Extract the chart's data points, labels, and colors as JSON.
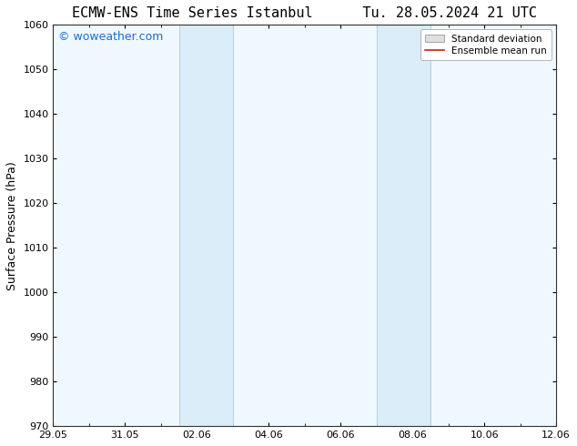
{
  "title_left": "ECMW-ENS Time Series Istanbul",
  "title_right": "Tu. 28.05.2024 21 UTC",
  "ylabel": "Surface Pressure (hPa)",
  "ylim": [
    970,
    1060
  ],
  "yticks": [
    970,
    980,
    990,
    1000,
    1010,
    1020,
    1030,
    1040,
    1050,
    1060
  ],
  "x_start_days": 0,
  "x_end_days": 14,
  "xtick_labels": [
    "29.05",
    "31.05",
    "02.06",
    "04.06",
    "06.06",
    "08.06",
    "10.06",
    "12.06"
  ],
  "xtick_positions": [
    0,
    2,
    4,
    6,
    8,
    10,
    12,
    14
  ],
  "shade_bands": [
    {
      "x_start": 3.5,
      "x_end": 5.0
    },
    {
      "x_start": 9.0,
      "x_end": 10.5
    }
  ],
  "shade_color": "#daedf8",
  "shade_edge_color": "#aacce0",
  "watermark_text": "© woweather.com",
  "watermark_color": "#1a6ecc",
  "watermark_fontsize": 9,
  "legend_std_label": "Standard deviation",
  "legend_mean_label": "Ensemble mean run",
  "legend_std_facecolor": "#e0e0e0",
  "legend_std_edgecolor": "#aaaaaa",
  "legend_mean_color": "#cc2200",
  "plot_bg_color": "#f0f8ff",
  "fig_bg_color": "#ffffff",
  "spine_color": "#333333",
  "title_fontsize": 11,
  "ylabel_fontsize": 9,
  "tick_fontsize": 8,
  "legend_fontsize": 7.5
}
